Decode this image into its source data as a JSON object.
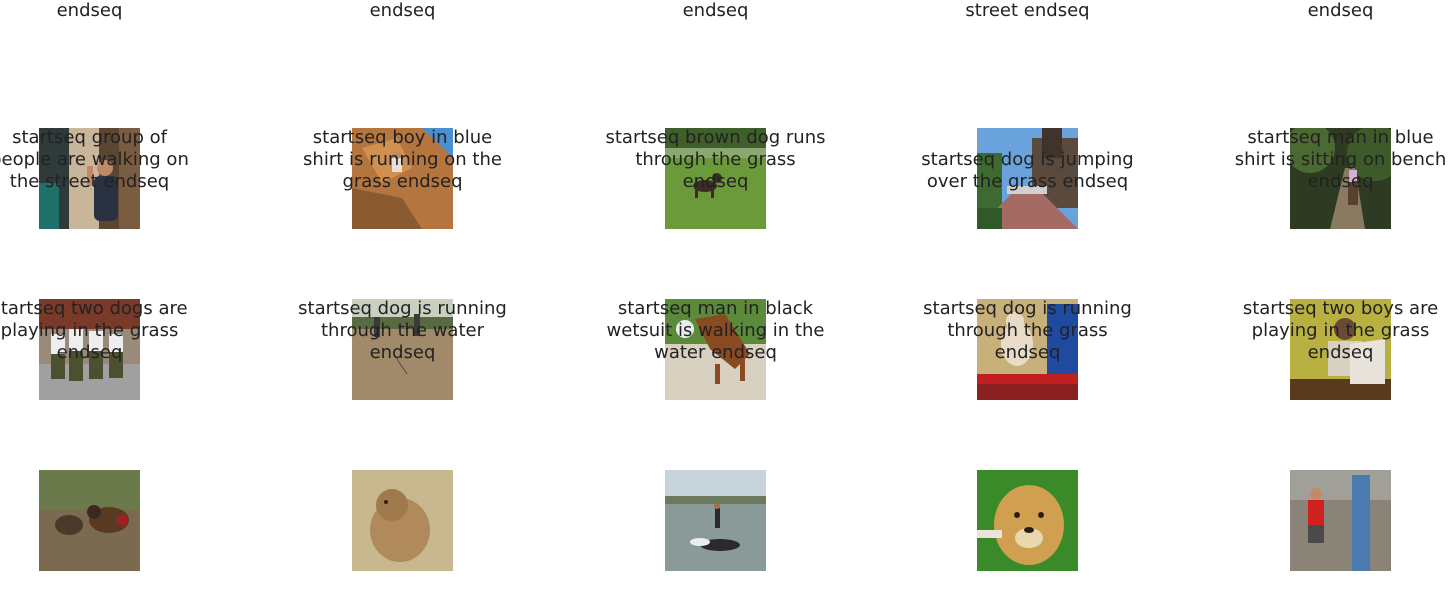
{
  "grid": {
    "cells": [
      {
        "caption": "startseq man in black shirt and sunglasses is standing on the street endseq",
        "image": "man-in-black-shirt-street-photo"
      },
      {
        "caption": "startseq man in red shirt is climbing rock endseq",
        "image": "rock-climber-photo"
      },
      {
        "caption": "startseq dog is running through the grass endseq",
        "image": "dog-on-grass-photo"
      },
      {
        "caption": "startseq man in red shirt is walking down street endseq",
        "image": "town-street-photo"
      },
      {
        "caption": "startseq man in red shirt is standing on the side of the rocks endseq",
        "image": "forest-trail-horse-photo"
      },
      {
        "caption": "startseq group of people are walking on the street endseq",
        "image": "soldiers-running-photo"
      },
      {
        "caption": "startseq boy in blue shirt is running on the grass endseq",
        "image": "dirt-field-people-photo"
      },
      {
        "caption": "startseq brown dog runs through the grass endseq",
        "image": "dog-catching-ball-photo"
      },
      {
        "caption": "startseq dog is jumping over the grass endseq",
        "image": "dog-on-playground-photo"
      },
      {
        "caption": "startseq man in blue shirt is sitting on bench endseq",
        "image": "man-reading-newspaper-photo"
      },
      {
        "caption": "startseq two dogs are playing in the grass endseq",
        "image": "two-dogs-playing-photo"
      },
      {
        "caption": "startseq dog is running through the water endseq",
        "image": "wet-dog-photo"
      },
      {
        "caption": "startseq man in black wetsuit is walking in the water endseq",
        "image": "man-in-water-photo"
      },
      {
        "caption": "startseq dog is running through the grass endseq",
        "image": "golden-retriever-photo"
      },
      {
        "caption": "startseq two boys are playing in the grass endseq",
        "image": "boys-playing-photo"
      }
    ]
  }
}
